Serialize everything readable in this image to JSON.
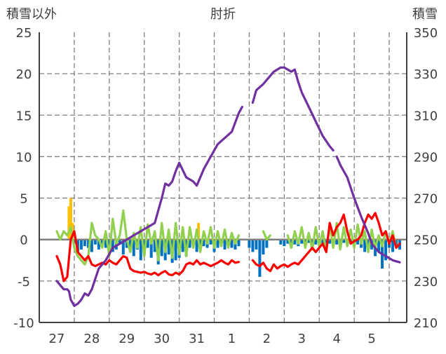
{
  "chart_data": {
    "type": "line",
    "title": "肘折",
    "left_axis": {
      "label": "積雪以外",
      "ylim": [
        -10,
        25
      ],
      "ticks": [
        "25",
        "20",
        "15",
        "10",
        "5",
        "0",
        "-5",
        "-10"
      ]
    },
    "right_axis": {
      "label": "積雪",
      "ylim": [
        210,
        350
      ],
      "ticks": [
        "350",
        "330",
        "310",
        "290",
        "270",
        "250",
        "230",
        "210"
      ]
    },
    "x_labels": [
      "27",
      "28",
      "29",
      "30",
      "31",
      "1",
      "2",
      "3",
      "4",
      "5"
    ],
    "grid": "dashed vertical and horizontal",
    "colors": {
      "snow_depth": "#7030a0",
      "temperature": "#ff0000",
      "temperature_green": "#92d050",
      "bar_blue": "#0070c0",
      "bar_orange": "#ffc000",
      "axis": "#404040",
      "grid": "#808080"
    },
    "series": [
      {
        "axis": "right",
        "x": [
          0.0,
          0.1,
          0.2,
          0.3,
          0.35,
          0.4,
          0.5,
          0.6,
          0.7,
          0.8,
          0.9,
          1.0,
          1.2,
          1.4,
          1.6,
          1.8,
          2.0,
          2.2,
          2.4,
          2.6,
          2.8,
          3.0,
          3.1,
          3.2,
          3.3,
          3.4,
          3.5,
          3.7,
          3.9,
          4.0,
          4.2,
          4.4,
          4.6,
          4.8,
          5.0,
          5.2,
          5.3
        ],
        "values": [
          230,
          228,
          226,
          226,
          225,
          221,
          218,
          219,
          221,
          224,
          223,
          226,
          236,
          240,
          246,
          248,
          250,
          252,
          254,
          256,
          258,
          270,
          277,
          276,
          278,
          283,
          287,
          280,
          278,
          276,
          284,
          290,
          296,
          299,
          302,
          311,
          314
        ]
      },
      {
        "axis": "right",
        "x": [
          5.6,
          5.7,
          5.9,
          6.0,
          6.2,
          6.4,
          6.5,
          6.6,
          6.7,
          6.8,
          6.9,
          7.0,
          7.2,
          7.4,
          7.6,
          7.8,
          7.9
        ],
        "values": [
          316,
          322,
          325,
          327,
          331,
          333,
          333,
          332,
          331,
          332,
          326,
          321,
          314,
          307,
          300,
          295,
          293
        ]
      },
      {
        "axis": "right",
        "x": [
          8.0,
          8.1,
          8.3,
          8.5,
          8.7,
          8.9,
          9.0,
          9.2,
          9.4,
          9.6,
          9.8
        ],
        "values": [
          290,
          286,
          280,
          270,
          261,
          253,
          248,
          244,
          242,
          240,
          239
        ]
      },
      {
        "axis": "left",
        "x": [
          0.0,
          0.1,
          0.2,
          0.3,
          0.4,
          0.5,
          0.6,
          0.7,
          0.8,
          0.9,
          1.0,
          1.1,
          1.2,
          1.3,
          1.4,
          1.5,
          1.6,
          1.7,
          1.8,
          1.9,
          2.0,
          2.1,
          2.2,
          2.3,
          2.4,
          2.5,
          2.6,
          2.7,
          2.8,
          2.9,
          3.0,
          3.1,
          3.2,
          3.3,
          3.4,
          3.5,
          3.6,
          3.7,
          3.8,
          3.9,
          4.0,
          4.1,
          4.2,
          4.3,
          4.4,
          4.5,
          4.6,
          4.7,
          4.8,
          4.9,
          5.0,
          5.1,
          5.2
        ],
        "values": [
          -2.0,
          -3.0,
          -5.0,
          -4.5,
          0.0,
          1.0,
          -1.5,
          -2.0,
          -2.5,
          -2.0,
          -3.0,
          -3.2,
          -3.0,
          -2.8,
          -3.0,
          -2.5,
          -2.8,
          -3.0,
          -2.5,
          -2.0,
          -2.2,
          -3.5,
          -3.8,
          -3.9,
          -4.0,
          -3.9,
          -4.1,
          -4.2,
          -4.0,
          -4.3,
          -4.0,
          -3.8,
          -4.2,
          -4.3,
          -4.0,
          -4.2,
          -3.8,
          -3.0,
          -2.8,
          -3.0,
          -2.5,
          -3.0,
          -2.8,
          -3.0,
          -3.2,
          -3.0,
          -2.8,
          -2.5,
          -2.8,
          -3.0,
          -2.5,
          -2.8,
          -2.7
        ]
      },
      {
        "axis": "left",
        "x": [
          5.6,
          5.7,
          5.8,
          5.9,
          6.0,
          6.1,
          6.2,
          6.3,
          6.4,
          6.5,
          6.6,
          6.7,
          6.8,
          6.9,
          7.0,
          7.1,
          7.2,
          7.3,
          7.4,
          7.5,
          7.6,
          7.7,
          7.8,
          7.9,
          8.0,
          8.1,
          8.2,
          8.3,
          8.4,
          8.5,
          8.6,
          8.7,
          8.8,
          8.9,
          9.0,
          9.1,
          9.2,
          9.3,
          9.4,
          9.5,
          9.6,
          9.7,
          9.8
        ],
        "values": [
          -2.5,
          -3.0,
          -3.2,
          -2.8,
          -3.5,
          -3.8,
          -3.0,
          -3.5,
          -3.2,
          -3.0,
          -3.3,
          -3.0,
          -2.8,
          -3.0,
          -2.5,
          -2.0,
          -1.5,
          -1.0,
          -1.5,
          -1.0,
          -0.5,
          -1.5,
          2.0,
          0.5,
          1.5,
          2.0,
          3.0,
          1.0,
          -0.5,
          -0.2,
          0.0,
          0.5,
          2.0,
          3.0,
          2.5,
          3.2,
          2.0,
          0.5,
          1.0,
          -0.5,
          0.5,
          -1.0,
          -0.5
        ]
      },
      {
        "axis": "left",
        "x": [
          0.0,
          0.1,
          0.2,
          0.3,
          0.4,
          0.5,
          0.6,
          0.7,
          0.8,
          0.9,
          1.0,
          1.1,
          1.2,
          1.3,
          1.4,
          1.5,
          1.6,
          1.7,
          1.8,
          1.9,
          2.0,
          2.1,
          2.2,
          2.3,
          2.4,
          2.5,
          2.6,
          2.7,
          2.8,
          2.9,
          3.0,
          3.1,
          3.2,
          3.3,
          3.4,
          3.5,
          3.6,
          3.7,
          3.8,
          3.9,
          4.0,
          4.1,
          4.2,
          4.3,
          4.4,
          4.5,
          4.6,
          4.7,
          4.8,
          4.9,
          5.0,
          5.1,
          5.2
        ],
        "values": [
          1.0,
          0.0,
          1.0,
          0.5,
          1.5,
          -1.0,
          -2.0,
          -2.5,
          -3.0,
          -2.0,
          2.0,
          0.5,
          0.0,
          -1.0,
          1.0,
          -2.0,
          2.5,
          -0.5,
          0.5,
          3.5,
          0.0,
          -1.5,
          0.8,
          -1.0,
          1.5,
          -2.0,
          1.8,
          -0.5,
          1.0,
          -2.5,
          2.0,
          -1.5,
          1.2,
          -2.2,
          2.0,
          -1.8,
          1.5,
          -2.0,
          1.5,
          -1.0,
          1.2,
          -1.5,
          1.0,
          -0.5,
          1.5,
          -1.0,
          1.0,
          -0.8,
          1.2,
          -1.0,
          0.8,
          -0.5,
          0.5
        ]
      },
      {
        "axis": "left",
        "x": [
          5.9,
          6.0,
          6.1
        ],
        "values": [
          1.0,
          0.0,
          0.5
        ]
      },
      {
        "axis": "left",
        "x": [
          6.6,
          6.7,
          6.8,
          6.9,
          7.0,
          7.1,
          7.2,
          7.3,
          7.4,
          7.5,
          7.6,
          7.7,
          7.8,
          7.9,
          8.0,
          8.1,
          8.2,
          8.3,
          8.4,
          8.5,
          8.6,
          8.7,
          8.8,
          8.9,
          9.0,
          9.1,
          9.2,
          9.3,
          9.4,
          9.5,
          9.6,
          9.7,
          9.8
        ],
        "values": [
          0.5,
          -1.0,
          1.0,
          -0.5,
          1.5,
          -1.0,
          0.8,
          -1.2,
          1.5,
          -0.8,
          1.0,
          -1.5,
          1.8,
          -1.0,
          2.0,
          -1.2,
          1.5,
          -0.8,
          1.2,
          -1.0,
          1.8,
          -0.5,
          1.0,
          -1.5,
          1.2,
          -1.0,
          0.5,
          -0.8,
          1.0,
          -0.5,
          1.0,
          -1.0,
          -0.5
        ]
      },
      {
        "axis": "left",
        "type": "bar",
        "x": [
          0.5,
          0.6,
          0.7,
          0.8,
          0.9,
          1.0,
          1.1,
          1.2,
          1.3,
          1.4,
          1.5,
          1.6,
          1.7,
          1.8,
          1.9,
          2.0,
          2.1,
          2.2,
          2.3,
          2.4,
          2.5,
          2.6,
          2.7,
          2.8,
          2.9,
          3.0,
          3.1,
          3.2,
          3.3,
          3.4,
          3.5,
          3.6,
          3.7,
          3.8,
          3.9,
          4.0,
          4.1,
          4.2,
          4.3,
          4.4,
          4.5,
          4.6,
          4.7,
          4.8,
          4.9,
          5.0,
          5.1,
          5.2,
          5.5,
          5.6,
          5.7,
          5.8,
          5.9,
          6.0,
          6.4,
          6.5,
          6.6,
          6.7,
          6.8,
          6.9,
          7.0,
          7.1,
          7.2,
          7.3,
          7.4,
          7.5,
          7.6,
          7.7,
          7.8,
          7.9,
          8.0,
          8.1,
          8.2,
          8.3,
          8.4,
          8.5,
          8.6,
          8.7,
          8.8,
          8.9,
          9.0,
          9.1,
          9.2,
          9.3,
          9.4,
          9.5,
          9.6,
          9.7,
          9.8
        ],
        "values": [
          -0.5,
          -1.5,
          -1.2,
          -0.8,
          -1.0,
          -1.5,
          -0.6,
          -1.2,
          -0.8,
          -1.0,
          -0.7,
          -1.5,
          -1.2,
          -0.6,
          -1.8,
          -1.0,
          -1.5,
          -2.0,
          -1.2,
          -2.5,
          -1.8,
          -1.0,
          -2.2,
          -1.5,
          -3.0,
          -2.0,
          -2.5,
          -1.8,
          -2.8,
          -2.5,
          -2.2,
          -1.5,
          -2.0,
          -1.0,
          -0.8,
          -1.5,
          -1.2,
          -0.8,
          -1.0,
          -0.6,
          -1.5,
          -1.0,
          -0.8,
          -1.2,
          -0.6,
          -1.0,
          -1.2,
          -0.8,
          -1.0,
          -1.5,
          -1.2,
          -4.5,
          -1.8,
          -1.0,
          -0.6,
          -0.8,
          -0.5,
          -1.0,
          -0.6,
          -0.8,
          -0.5,
          -0.6,
          -0.4,
          -0.8,
          -0.6,
          -0.5,
          -0.8,
          -0.6,
          -0.5,
          -0.7,
          -0.6,
          -0.5,
          -0.4,
          -0.6,
          -0.5,
          -0.8,
          -0.6,
          -1.0,
          -1.5,
          -0.8,
          -1.2,
          -2.0,
          -1.5,
          -3.5,
          -2.5,
          -1.0,
          -1.5,
          -0.8,
          -1.2
        ]
      },
      {
        "axis": "left",
        "type": "bar",
        "x": [
          0.35,
          0.4,
          0.45,
          4.05
        ],
        "values": [
          4.0,
          5.0,
          2.0,
          2.0
        ]
      }
    ]
  }
}
